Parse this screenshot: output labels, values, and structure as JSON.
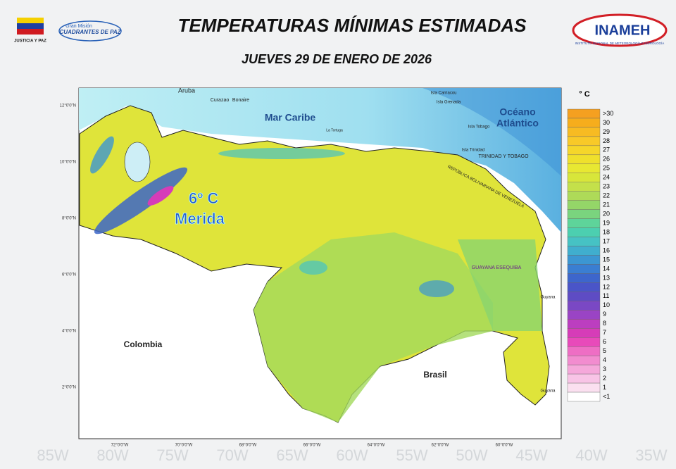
{
  "header": {
    "title": "TEMPERATURAS MÍNIMAS ESTIMADAS",
    "subtitle": "JUEVES 29 DE ENERO DE 2026",
    "left_logo_text": "JUSTICIA Y PAZ",
    "mission_logo": [
      "Gran Misión",
      "CUADRANTES DE PAZ"
    ],
    "right_logo": "INAMEH",
    "right_logo_caption": "INSTITUTO NACIONAL DE METEOROLOGÍA E HIDROLOGÍA"
  },
  "map": {
    "labels": [
      "Aruba",
      "Curazao",
      "Bonaire",
      "Mar Caribe",
      "Océano",
      "Atlántico",
      "Colombia",
      "Brasil",
      "GUAYANA ESEQUIBA",
      "TRINIDAD Y TOBAGO",
      "REPÚBLICA BOLIVARIANA DE VENEZUELA",
      "Isla Trinidad",
      "Isla Tobago",
      "Isla Grenada",
      "Isla Carriacou",
      "Guyana",
      "Guyana",
      "La Tortuga"
    ],
    "annotation": {
      "value": "6º C",
      "place": "Merida"
    },
    "lat_ticks": [
      "12°0'0\"N",
      "10°0'0\"N",
      "8°0'0\"N",
      "6°0'0\"N",
      "4°0'0\"N",
      "2°0'0\"N"
    ],
    "lon_ticks": [
      "72°0'0\"W",
      "70°0'0\"W",
      "68°0'0\"W",
      "66°0'0\"W",
      "64°0'0\"W",
      "62°0'0\"W",
      "60°0'0\"W"
    ],
    "background_labels": [
      "85W",
      "80W",
      "75W",
      "70W",
      "65W",
      "60W",
      "55W",
      "50W",
      "45W",
      "40W",
      "35W"
    ]
  },
  "legend": {
    "unit": "° C",
    "items": [
      {
        "label": ">30",
        "color": "#f5a020"
      },
      {
        "label": "30",
        "color": "#f6ad1c"
      },
      {
        "label": "29",
        "color": "#f7bb22"
      },
      {
        "label": "28",
        "color": "#f8c928"
      },
      {
        "label": "27",
        "color": "#f5d62a"
      },
      {
        "label": "26",
        "color": "#efe02c"
      },
      {
        "label": "25",
        "color": "#e8e832"
      },
      {
        "label": "24",
        "color": "#d8e63a"
      },
      {
        "label": "23",
        "color": "#c4e04a"
      },
      {
        "label": "22",
        "color": "#aeda58"
      },
      {
        "label": "21",
        "color": "#94d668"
      },
      {
        "label": "20",
        "color": "#7ad47e"
      },
      {
        "label": "19",
        "color": "#5ed49a"
      },
      {
        "label": "18",
        "color": "#4ccfb0"
      },
      {
        "label": "17",
        "color": "#46c2c4"
      },
      {
        "label": "16",
        "color": "#40aece"
      },
      {
        "label": "15",
        "color": "#3c96d2"
      },
      {
        "label": "14",
        "color": "#3a7ed2"
      },
      {
        "label": "13",
        "color": "#3d66cc"
      },
      {
        "label": "12",
        "color": "#4a55c8"
      },
      {
        "label": "11",
        "color": "#5e4cc4"
      },
      {
        "label": "10",
        "color": "#7a48c4"
      },
      {
        "label": "9",
        "color": "#9a44c4"
      },
      {
        "label": "8",
        "color": "#bc3ec0"
      },
      {
        "label": "7",
        "color": "#d63cb8"
      },
      {
        "label": "6",
        "color": "#e84aba"
      },
      {
        "label": "5",
        "color": "#ee6ec4"
      },
      {
        "label": "4",
        "color": "#f28ccf"
      },
      {
        "label": "3",
        "color": "#f5a8da"
      },
      {
        "label": "2",
        "color": "#f8c4e6"
      },
      {
        "label": "1",
        "color": "#fbe0f0"
      },
      {
        "label": "<1",
        "color": "#ffffff"
      }
    ]
  }
}
